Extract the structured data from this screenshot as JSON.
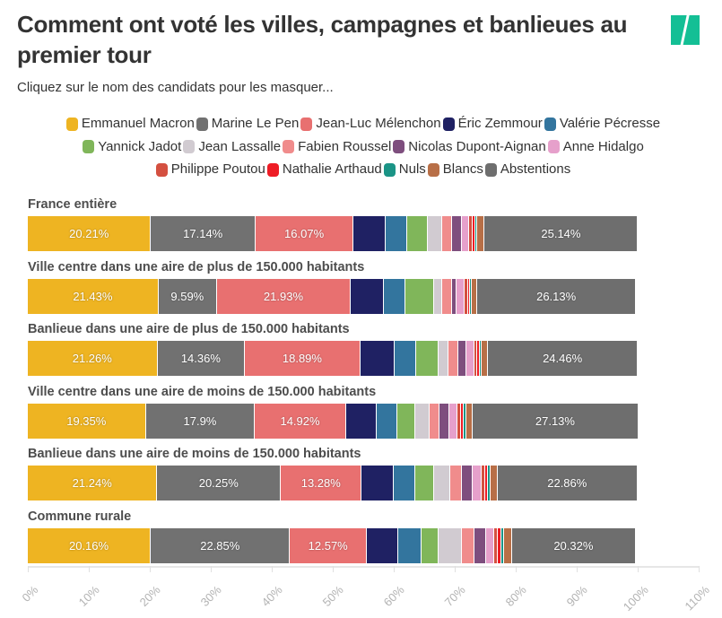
{
  "header": {
    "title": "Comment ont voté les villes, campagnes et banlieues au premier tour",
    "subtitle": "Cliquez sur le nom des candidats pour les masquer...",
    "logo": "huffpost-logo-icon"
  },
  "chart_data": {
    "type": "bar",
    "orientation": "horizontal-stacked-100",
    "title": "Comment ont voté les villes, campagnes et banlieues au premier tour",
    "subtitle": "Cliquez sur le nom des candidats pour les masquer...",
    "xlabel": "",
    "ylabel": "",
    "xlim": [
      0,
      110
    ],
    "x_ticks": [
      "0%",
      "10%",
      "20%",
      "30%",
      "40%",
      "50%",
      "60%",
      "70%",
      "80%",
      "90%",
      "100%",
      "110%"
    ],
    "legend_position": "top",
    "categories": [
      "France entière",
      "Ville centre dans une aire de plus de 150.000 habitants",
      "Banlieue dans une aire de plus de 150.000 habitants",
      "Ville centre dans une aire de moins de 150.000 habitants",
      "Banlieue dans une aire de moins de 150.000 habitants",
      "Commune rurale"
    ],
    "series": [
      {
        "name": "Emmanuel Macron",
        "color": "#eeb422",
        "values": [
          20.21,
          21.43,
          21.26,
          19.35,
          21.24,
          20.16
        ],
        "labels": [
          "20.21%",
          "21.43%",
          "21.26%",
          "19.35%",
          "21.24%",
          "20.16%"
        ]
      },
      {
        "name": "Marine Le Pen",
        "color": "#717171",
        "values": [
          17.14,
          9.59,
          14.36,
          17.9,
          20.25,
          22.85
        ],
        "labels": [
          "17.14%",
          "9.59%",
          "14.36%",
          "17.9%",
          "20.25%",
          "22.85%"
        ]
      },
      {
        "name": "Jean-Luc Mélenchon",
        "color": "#e87070",
        "values": [
          16.07,
          21.93,
          18.89,
          14.92,
          13.28,
          12.57
        ],
        "labels": [
          "16.07%",
          "21.93%",
          "18.89%",
          "14.92%",
          "13.28%",
          "12.57%"
        ]
      },
      {
        "name": "Éric Zemmour",
        "color": "#1f2163",
        "values": [
          5.3,
          5.4,
          5.6,
          5.0,
          5.2,
          5.2
        ]
      },
      {
        "name": "Valérie Pécresse",
        "color": "#33759e",
        "values": [
          3.5,
          3.5,
          3.5,
          3.4,
          3.5,
          3.8
        ]
      },
      {
        "name": "Yannick Jadot",
        "color": "#80b65a",
        "values": [
          3.4,
          4.8,
          3.7,
          2.9,
          3.2,
          2.8
        ]
      },
      {
        "name": "Jean Lassalle",
        "color": "#d1cbd1",
        "values": [
          2.3,
          1.3,
          1.7,
          2.4,
          2.6,
          3.8
        ]
      },
      {
        "name": "Fabien Roussel",
        "color": "#f08c8c",
        "values": [
          1.7,
          1.6,
          1.6,
          1.6,
          1.9,
          2.0
        ]
      },
      {
        "name": "Nicolas Dupont-Aignan",
        "color": "#7e4e7e",
        "values": [
          1.5,
          0.7,
          1.3,
          1.6,
          1.8,
          2.0
        ]
      },
      {
        "name": "Anne Hidalgo",
        "color": "#e6a0cb",
        "values": [
          1.2,
          1.4,
          1.3,
          1.4,
          1.4,
          1.3
        ]
      },
      {
        "name": "Philippe Poutou",
        "color": "#d45040",
        "values": [
          0.6,
          0.5,
          0.5,
          0.6,
          0.6,
          0.6
        ]
      },
      {
        "name": "Nathalie Arthaud",
        "color": "#ee1c25",
        "values": [
          0.4,
          0.3,
          0.4,
          0.4,
          0.5,
          0.5
        ]
      },
      {
        "name": "Nuls",
        "color": "#1b9486",
        "values": [
          0.4,
          0.3,
          0.3,
          0.4,
          0.4,
          0.5
        ]
      },
      {
        "name": "Blancs",
        "color": "#b86f47",
        "values": [
          1.2,
          0.9,
          1.1,
          1.1,
          1.2,
          1.3
        ]
      },
      {
        "name": "Abstentions",
        "color": "#6e6e6e",
        "values": [
          25.14,
          26.13,
          24.46,
          27.13,
          22.86,
          20.32
        ],
        "labels": [
          "25.14%",
          "26.13%",
          "24.46%",
          "27.13%",
          "22.86%",
          "20.32%"
        ]
      }
    ]
  },
  "legend_rows": [
    [
      0,
      1,
      2,
      3,
      4
    ],
    [
      5,
      6,
      7,
      8,
      9
    ],
    [
      10,
      11,
      12,
      13,
      14
    ]
  ]
}
